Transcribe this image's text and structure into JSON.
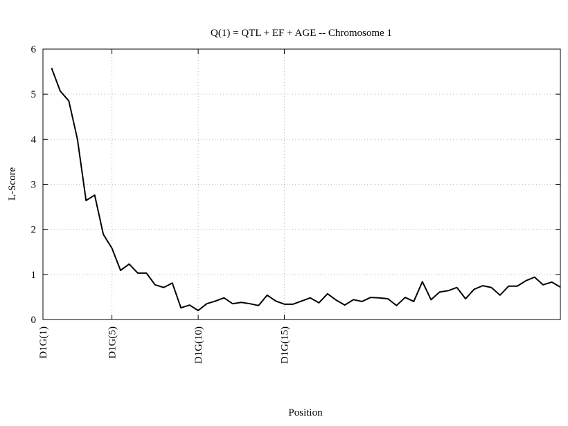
{
  "chart_data": {
    "type": "line",
    "title": "Q(1) = QTL + EF + AGE -- Chromosome 1",
    "x_label": "Position",
    "y_label": "L-Score",
    "x": [
      1.5,
      2,
      2.5,
      3,
      3.5,
      4,
      4.5,
      5,
      5.5,
      6,
      6.5,
      7,
      7.5,
      8,
      8.5,
      9,
      9.5,
      10,
      10.5,
      11,
      11.5,
      12,
      12.5,
      13,
      13.5,
      14,
      14.5,
      15,
      15.5,
      16,
      16.5,
      17,
      17.5,
      18,
      18.5,
      19,
      19.5,
      20,
      20.5,
      21,
      21.5,
      22,
      22.5,
      23,
      23.5,
      24,
      24.5,
      25,
      25.5,
      26,
      26.5,
      27,
      27.5,
      28,
      28.5,
      29,
      29.5,
      30,
      30.5,
      31
    ],
    "series": [
      {
        "name": "L-Score",
        "color": "#000000",
        "values": [
          5.58,
          5.07,
          4.85,
          4.0,
          2.64,
          2.76,
          1.89,
          1.58,
          1.09,
          1.23,
          1.03,
          1.03,
          0.77,
          0.71,
          0.81,
          0.26,
          0.32,
          0.2,
          0.35,
          0.41,
          0.48,
          0.35,
          0.38,
          0.35,
          0.31,
          0.54,
          0.41,
          0.34,
          0.34,
          0.41,
          0.48,
          0.37,
          0.57,
          0.43,
          0.32,
          0.44,
          0.4,
          0.49,
          0.48,
          0.46,
          0.31,
          0.49,
          0.4,
          0.84,
          0.44,
          0.61,
          0.64,
          0.71,
          0.46,
          0.67,
          0.75,
          0.71,
          0.54,
          0.74,
          0.74,
          0.86,
          0.94,
          0.77,
          0.83,
          0.72
        ]
      }
    ],
    "xlim": [
      1,
      31
    ],
    "xticks": [
      {
        "value": 1,
        "label": "D1G(1)"
      },
      {
        "value": 5,
        "label": "D1G(5)"
      },
      {
        "value": 10,
        "label": "D1G(10)"
      },
      {
        "value": 15,
        "label": "D1G(15)"
      }
    ],
    "ylim": [
      0,
      6
    ],
    "yticks": [
      0,
      1,
      2,
      3,
      4,
      5,
      6
    ],
    "grid": true
  }
}
